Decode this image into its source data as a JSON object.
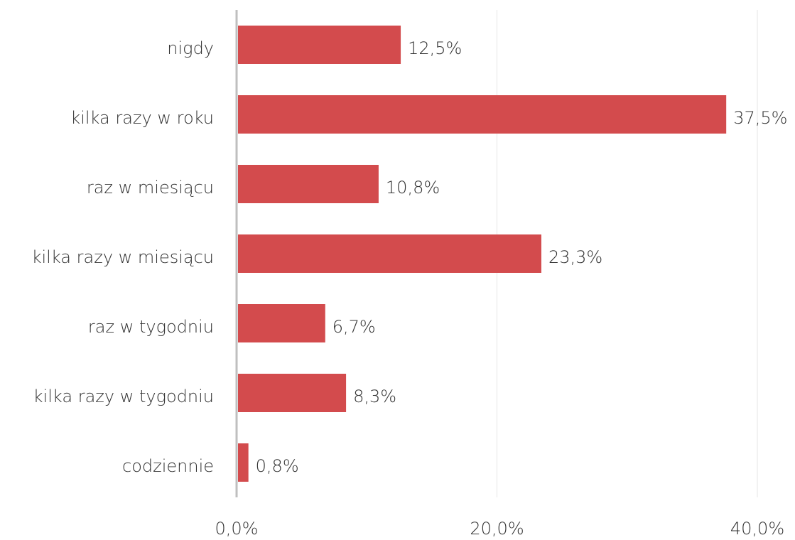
{
  "chart_data": {
    "type": "bar",
    "orientation": "horizontal",
    "categories": [
      "nigdy",
      "kilka razy w roku",
      "raz w miesiącu",
      "kilka razy w miesiącu",
      "raz w tygodniu",
      "kilka razy w tygodniu",
      "codziennie"
    ],
    "values": [
      12.5,
      37.5,
      10.8,
      23.3,
      6.7,
      8.3,
      0.8
    ],
    "value_labels": [
      "12,5%",
      "37,5%",
      "10,8%",
      "23,3%",
      "6,7%",
      "8,3%",
      "0,8%"
    ],
    "color": "#d34b4d",
    "xlim": [
      0,
      40
    ],
    "xticks": [
      {
        "value": 0,
        "label": "0,0%"
      },
      {
        "value": 20,
        "label": "20,0%"
      },
      {
        "value": 40,
        "label": "40,0%"
      }
    ],
    "grid": true
  }
}
